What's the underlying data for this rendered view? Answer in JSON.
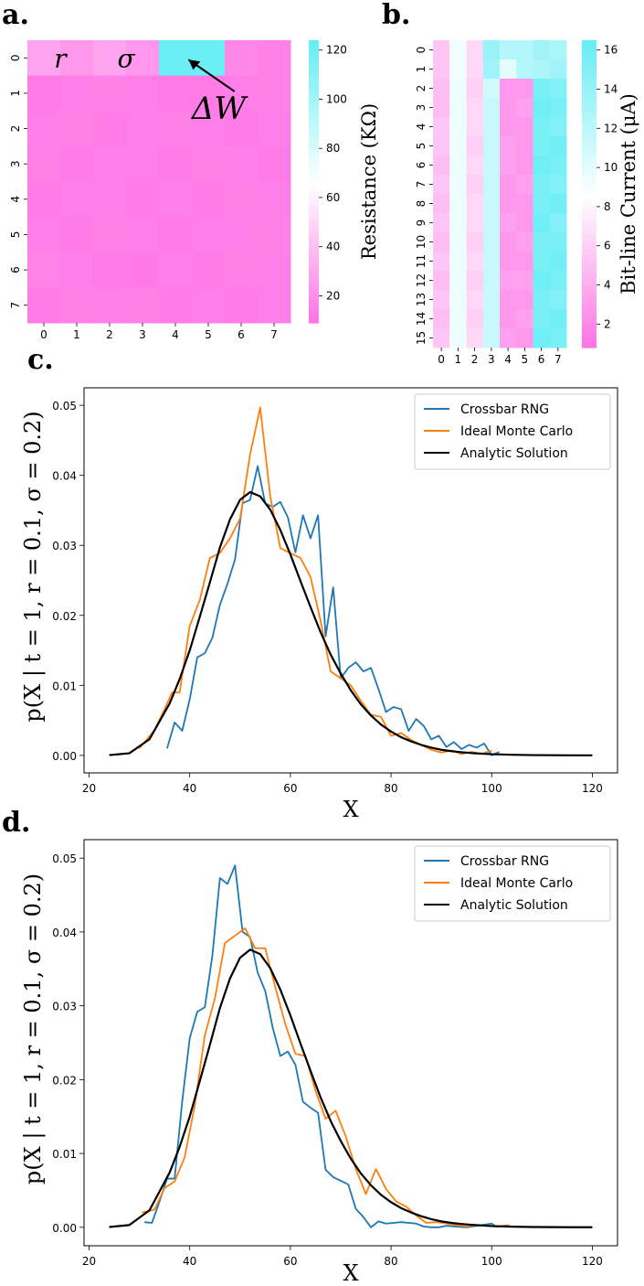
{
  "chart_data": [
    {
      "panel": "a.",
      "type": "heatmap",
      "xtick_labels": [
        "0",
        "1",
        "2",
        "3",
        "4",
        "5",
        "6",
        "7"
      ],
      "ytick_labels": [
        "0",
        "1",
        "2",
        "3",
        "4",
        "5",
        "6",
        "7"
      ],
      "values": [
        [
          30,
          25,
          30,
          25,
          122,
          122,
          18,
          16
        ],
        [
          14,
          15,
          16,
          15,
          14,
          14,
          15,
          16
        ],
        [
          15,
          16,
          14,
          15,
          16,
          15,
          14,
          15
        ],
        [
          16,
          14,
          15,
          15,
          14,
          16,
          15,
          14
        ],
        [
          14,
          15,
          15,
          14,
          15,
          14,
          16,
          15
        ],
        [
          15,
          14,
          16,
          15,
          14,
          15,
          15,
          16
        ],
        [
          17,
          15,
          14,
          13,
          15,
          14,
          16,
          15
        ],
        [
          14,
          16,
          15,
          16,
          14,
          15,
          14,
          15
        ]
      ],
      "annotations": [
        {
          "text": "r",
          "row": 0,
          "col": 0.5
        },
        {
          "text": "σ",
          "row": 0,
          "col": 2.5
        },
        {
          "text": "ΔW",
          "row": 1,
          "col": 5.6
        }
      ],
      "colorbar": {
        "label": "Resistance (KΩ)",
        "ticks": [
          20,
          40,
          60,
          80,
          100,
          120
        ],
        "range": [
          9,
          124
        ]
      }
    },
    {
      "panel": "b.",
      "type": "heatmap",
      "xtick_labels": [
        "0",
        "1",
        "2",
        "3",
        "4",
        "5",
        "6",
        "7"
      ],
      "ytick_labels": [
        "0",
        "1",
        "2",
        "3",
        "4",
        "5",
        "6",
        "7",
        "8",
        "9",
        "10",
        "11",
        "12",
        "13",
        "14",
        "15"
      ],
      "values": [
        [
          5.5,
          9.3,
          6.5,
          14,
          12.5,
          12.5,
          13.5,
          13
        ],
        [
          5.5,
          9.3,
          6.5,
          13.5,
          10,
          12.5,
          13,
          13.5
        ],
        [
          5,
          9.5,
          6,
          11,
          3,
          3,
          15.5,
          15
        ],
        [
          5,
          9.5,
          6.5,
          11.5,
          3,
          3.5,
          16,
          15.5
        ],
        [
          5.5,
          9.5,
          6.5,
          11.5,
          3,
          3,
          15.5,
          15
        ],
        [
          5.5,
          9.5,
          6,
          11.5,
          3.5,
          3,
          15.5,
          16
        ],
        [
          5,
          9.5,
          6.5,
          11.5,
          3.5,
          3,
          16,
          15.5
        ],
        [
          5.5,
          9.5,
          6,
          11.5,
          3,
          3.5,
          15.5,
          15
        ],
        [
          5,
          9.5,
          6.5,
          11.5,
          3,
          3,
          15.5,
          16
        ],
        [
          5.5,
          9.5,
          6.5,
          11.5,
          3.5,
          3,
          16,
          15
        ],
        [
          5,
          9.5,
          6,
          11.5,
          3,
          3.5,
          15.5,
          15.5
        ],
        [
          5.5,
          9.5,
          6.5,
          11.5,
          3,
          3,
          15.5,
          16
        ],
        [
          5,
          9.5,
          6,
          11.5,
          3.5,
          3.5,
          16,
          15.5
        ],
        [
          5.5,
          9.5,
          6.5,
          11.5,
          3,
          3,
          15.5,
          15
        ],
        [
          5,
          9.5,
          6,
          11.5,
          3,
          3.5,
          15.5,
          16
        ],
        [
          5.5,
          9.5,
          6.5,
          11.5,
          3.5,
          3,
          16,
          15.5
        ]
      ],
      "colorbar": {
        "label": "Bit-line Current (μA)",
        "ticks": [
          2,
          4,
          6,
          8,
          10,
          12,
          14,
          16
        ],
        "range": [
          0.8,
          16.5
        ]
      }
    },
    {
      "panel": "c.",
      "type": "line",
      "xlabel": "X",
      "ylabel": "p(X | t = 1, r = 0.1, σ = 0.2)",
      "xlim": [
        19,
        125
      ],
      "ylim": [
        -0.0025,
        0.0525
      ],
      "xticks": [
        20,
        40,
        60,
        80,
        100,
        120
      ],
      "yticks": [
        0.0,
        0.01,
        0.02,
        0.03,
        0.04,
        0.05
      ],
      "legend_position": "top-right",
      "series": [
        {
          "name": "Crossbar RNG",
          "color": "#1f77b4",
          "x": [
            35.5,
            37,
            38.5,
            40,
            41.5,
            43,
            44.5,
            46,
            47.5,
            49,
            50.5,
            52,
            53.5,
            55,
            56.5,
            58,
            59.5,
            61,
            62.5,
            64,
            65.5,
            67,
            68.5,
            70,
            71.5,
            73,
            74.5,
            76,
            77.5,
            79,
            80.5,
            82,
            83.5,
            85,
            86.5,
            88,
            89.5,
            91,
            92.5,
            94,
            95.5,
            97,
            98.5,
            100,
            101.5
          ],
          "y": [
            0.001,
            0.0047,
            0.0035,
            0.008,
            0.014,
            0.0146,
            0.0168,
            0.0215,
            0.0245,
            0.028,
            0.036,
            0.0365,
            0.0413,
            0.036,
            0.0355,
            0.0362,
            0.034,
            0.029,
            0.0343,
            0.031,
            0.0343,
            0.017,
            0.024,
            0.011,
            0.0125,
            0.0133,
            0.012,
            0.0125,
            0.0095,
            0.0062,
            0.0069,
            0.0066,
            0.0035,
            0.0052,
            0.0042,
            0.0023,
            0.0028,
            0.0012,
            0.0019,
            0.0009,
            0.0015,
            0.0011,
            0.0017,
            0,
            0.0005
          ]
        },
        {
          "name": "Ideal Monte Carlo",
          "color": "#ff7f0e",
          "x": [
            30,
            33,
            35,
            36.5,
            38,
            40,
            42,
            44,
            46,
            48,
            50,
            52,
            54,
            56,
            58,
            60,
            62,
            64,
            66,
            68,
            70,
            72,
            74,
            76,
            78,
            80,
            82,
            84,
            86,
            88,
            90,
            92,
            94,
            96,
            98,
            100
          ],
          "y": [
            0.001,
            0.0036,
            0.0066,
            0.009,
            0.009,
            0.0185,
            0.0222,
            0.0282,
            0.0289,
            0.031,
            0.0338,
            0.043,
            0.0497,
            0.037,
            0.0296,
            0.0289,
            0.0282,
            0.0255,
            0.0192,
            0.012,
            0.011,
            0.01,
            0.0078,
            0.0058,
            0.0055,
            0.0028,
            0.0032,
            0.0022,
            0.0015,
            0.0008,
            0.0004,
            0.0007,
            0.0002,
            0.0005,
            0.0002,
            0.0007
          ]
        },
        {
          "name": "Analytic Solution",
          "color": "#000000",
          "x": [
            24,
            28,
            32,
            36,
            38,
            40,
            42,
            44,
            46,
            48,
            50,
            52,
            54,
            56,
            58,
            60,
            62,
            64,
            66,
            68,
            70,
            72,
            74,
            76,
            78,
            80,
            82,
            84,
            86,
            88,
            90,
            92,
            94,
            96,
            100,
            104,
            108,
            112,
            116,
            120
          ],
          "y": [
            4e-05,
            0.0003,
            0.0023,
            0.0074,
            0.0109,
            0.015,
            0.0198,
            0.0247,
            0.0297,
            0.0337,
            0.0365,
            0.0376,
            0.037,
            0.0351,
            0.0322,
            0.0287,
            0.0249,
            0.0212,
            0.0176,
            0.0144,
            0.0117,
            0.0093,
            0.0073,
            0.0057,
            0.0044,
            0.0034,
            0.0026,
            0.002,
            0.0015,
            0.0011,
            0.0008,
            0.0006,
            0.00045,
            0.00033,
            0.00017,
            9e-05,
            4e-05,
            2e-05,
            1e-05,
            5.5e-06
          ]
        }
      ]
    },
    {
      "panel": "d.",
      "type": "line",
      "xlabel": "X",
      "ylabel": "p(X | t = 1, r = 0.1, σ = 0.2)",
      "xlim": [
        19,
        125
      ],
      "ylim": [
        -0.0025,
        0.0525
      ],
      "xticks": [
        20,
        40,
        60,
        80,
        100,
        120
      ],
      "yticks": [
        0.0,
        0.01,
        0.02,
        0.03,
        0.04,
        0.05
      ],
      "legend_position": "top-right",
      "series": [
        {
          "name": "Crossbar RNG",
          "color": "#1f77b4",
          "x": [
            31,
            32.5,
            34,
            35.5,
            37,
            38.5,
            40,
            41.5,
            43,
            44.5,
            46,
            47.5,
            49,
            50.5,
            52,
            53.5,
            55,
            56.5,
            58,
            59.5,
            61,
            62.5,
            64,
            65.5,
            67,
            68.5,
            70,
            71.5,
            73,
            74.5,
            76,
            77.5,
            79,
            82,
            85,
            86.5,
            88,
            89.5,
            91,
            95,
            100,
            101
          ],
          "y": [
            0.0007,
            0.0006,
            0.0035,
            0.0066,
            0.0066,
            0.017,
            0.0256,
            0.0292,
            0.0298,
            0.0368,
            0.0473,
            0.0465,
            0.049,
            0.04,
            0.0393,
            0.0345,
            0.032,
            0.027,
            0.0232,
            0.0238,
            0.022,
            0.017,
            0.0162,
            0.0155,
            0.0078,
            0.0068,
            0.0063,
            0.0058,
            0.0025,
            0.0014,
            0,
            0.0008,
            0.0005,
            0.0007,
            0.0005,
            0.0001,
            0,
            0,
            0.0002,
            0,
            0.0005,
            0
          ]
        },
        {
          "name": "Ideal Monte Carlo",
          "color": "#ff7f0e",
          "x": [
            30.5,
            33,
            35,
            37,
            39,
            41,
            43,
            45,
            47,
            49,
            51,
            53,
            55,
            57,
            59,
            61,
            63,
            65,
            67,
            69,
            71,
            73,
            75,
            77,
            79,
            81,
            83,
            85,
            87,
            89,
            91,
            93,
            95,
            97,
            99,
            101,
            103.5
          ],
          "y": [
            0.002,
            0.0024,
            0.0053,
            0.0062,
            0.0095,
            0.0165,
            0.026,
            0.031,
            0.0385,
            0.0395,
            0.0405,
            0.0378,
            0.0378,
            0.0325,
            0.0275,
            0.0235,
            0.0232,
            0.0185,
            0.0147,
            0.0158,
            0.0123,
            0.0079,
            0.0045,
            0.0079,
            0.0052,
            0.0035,
            0.0028,
            0.0016,
            0.0006,
            0.0007,
            0.0005,
            0.0003,
            0.0001,
            0.0003,
            0.0002,
            0.0001,
            0.0003
          ]
        },
        {
          "name": "Analytic Solution",
          "color": "#000000",
          "x": [
            24,
            28,
            32,
            36,
            38,
            40,
            42,
            44,
            46,
            48,
            50,
            52,
            54,
            56,
            58,
            60,
            62,
            64,
            66,
            68,
            70,
            72,
            74,
            76,
            78,
            80,
            82,
            84,
            86,
            88,
            90,
            92,
            94,
            96,
            100,
            104,
            108,
            112,
            116,
            120
          ],
          "y": [
            4e-05,
            0.0003,
            0.0023,
            0.0074,
            0.0109,
            0.015,
            0.0198,
            0.0247,
            0.0297,
            0.0337,
            0.0365,
            0.0376,
            0.037,
            0.0351,
            0.0322,
            0.0287,
            0.0249,
            0.0212,
            0.0176,
            0.0144,
            0.0117,
            0.0093,
            0.0073,
            0.0057,
            0.0044,
            0.0034,
            0.0026,
            0.002,
            0.0015,
            0.0011,
            0.0008,
            0.0006,
            0.00045,
            0.00033,
            0.00017,
            9e-05,
            4e-05,
            2e-05,
            1e-05,
            5.5e-06
          ]
        }
      ]
    }
  ]
}
